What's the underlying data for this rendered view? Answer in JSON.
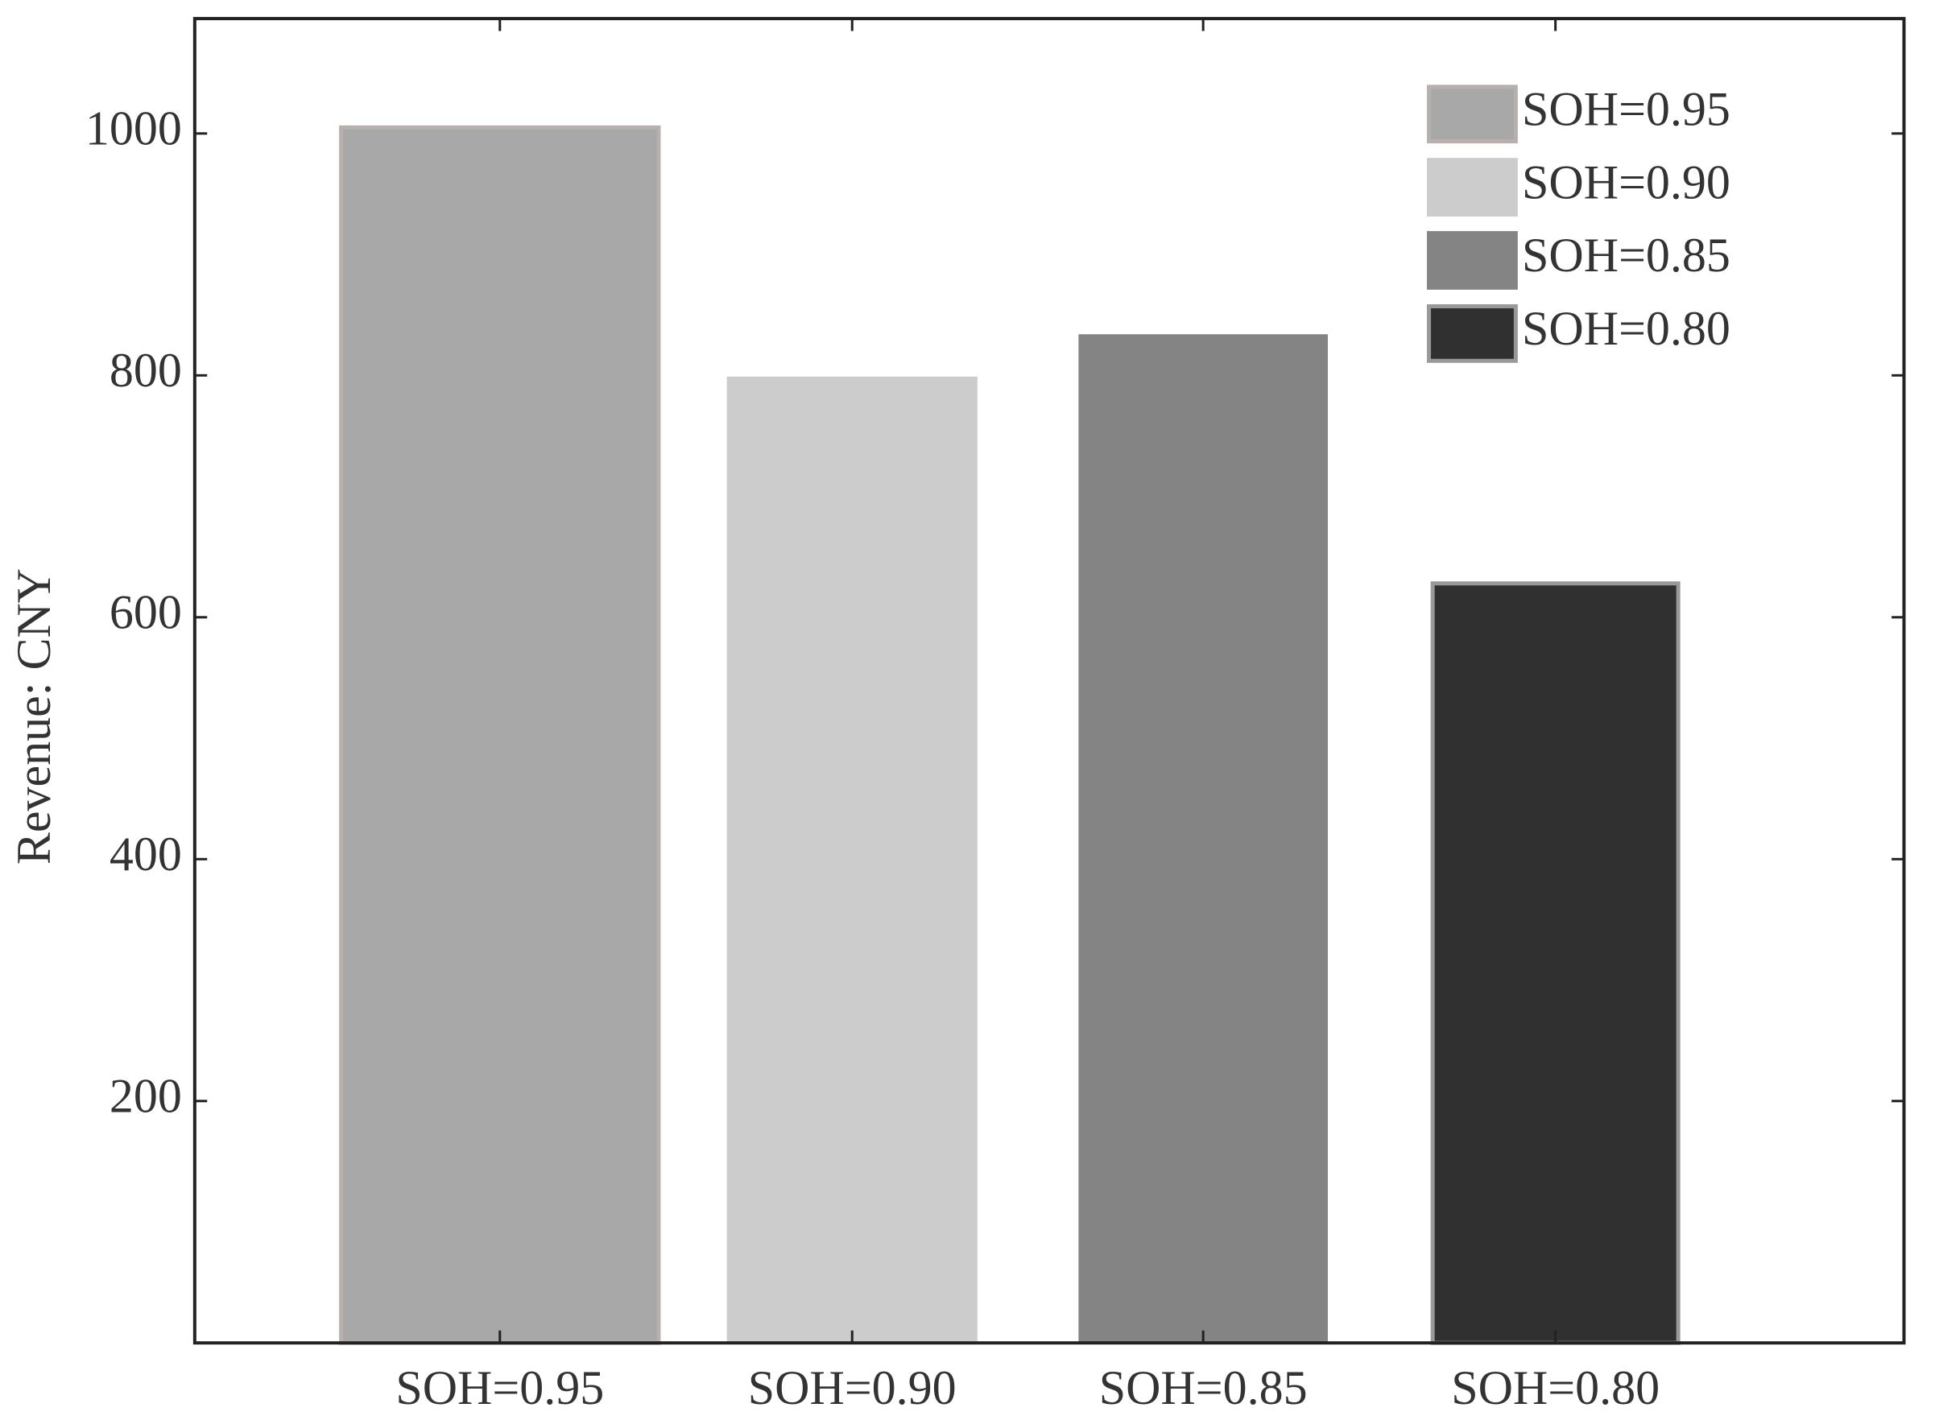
{
  "chart_data": {
    "type": "bar",
    "y_label": "Revenue: CNY",
    "categories": [
      "SOH=0.95",
      "SOH=0.90",
      "SOH=0.85",
      "SOH=0.80"
    ],
    "values": [
      1005,
      799,
      834,
      628
    ],
    "colors": [
      "#a8a8a8",
      "#cccccc",
      "#848484",
      "#303030"
    ],
    "ylim": [
      0,
      1095
    ],
    "yticks": [
      200,
      400,
      600,
      800,
      1000
    ],
    "legend": "upper right"
  }
}
